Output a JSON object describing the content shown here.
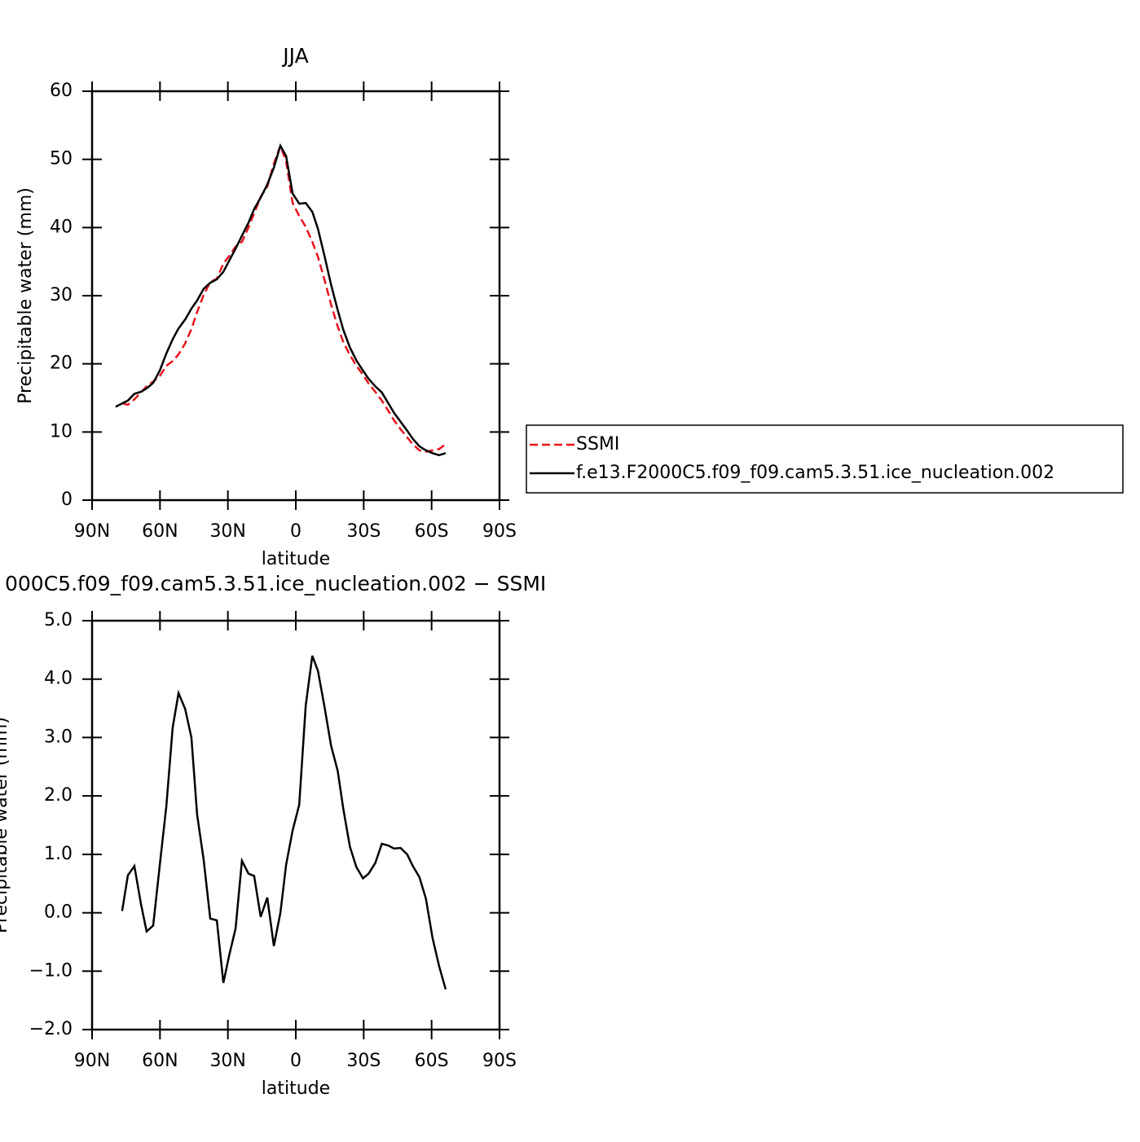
{
  "chart_data": [
    {
      "type": "line",
      "title": "JJA",
      "xlabel": "latitude",
      "ylabel": "Precipitable water (mm)",
      "xlim": [
        90,
        -90
      ],
      "xticks": [
        {
          "value": 90,
          "label": "90N"
        },
        {
          "value": 60,
          "label": "60N"
        },
        {
          "value": 30,
          "label": "30N"
        },
        0,
        {
          "value": -30,
          "label": "30S"
        },
        {
          "value": -60,
          "label": "60S"
        },
        {
          "value": -90,
          "label": "90S"
        }
      ],
      "ylim": [
        0,
        60
      ],
      "yticks": [
        0,
        10,
        20,
        30,
        40,
        50,
        60
      ],
      "legend": "right",
      "x": [
        79.6,
        76.7,
        74.2,
        71.3,
        68.4,
        65.9,
        63,
        60.1,
        57.2,
        54.4,
        51.8,
        48.9,
        46.1,
        43.6,
        40.7,
        37.8,
        34.9,
        32,
        29.5,
        26.6,
        23.8,
        20.9,
        18.4,
        15.5,
        12.6,
        9.7,
        6.8,
        4.3,
        1.4,
        -1.5,
        -4.4,
        -7.3,
        -9.8,
        -12.7,
        -15.6,
        -18.5,
        -21,
        -23.9,
        -26.8,
        -29.7,
        -32.2,
        -35.1,
        -38,
        -40.9,
        -43.4,
        -46.3,
        -49.2,
        -51.7,
        -54.6,
        -57.5,
        -60.4,
        -63.3,
        -66.2
      ],
      "series": [
        {
          "name": "SSMI",
          "color": "#e8141c",
          "dash": "dashed",
          "values": [
            null,
            14.2,
            14.0,
            14.8,
            15.8,
            16.7,
            17.4,
            18.2,
            19.7,
            20.4,
            21.4,
            23.0,
            25.1,
            27.6,
            30.1,
            32.0,
            32.5,
            34.7,
            35.8,
            37.2,
            37.9,
            40.0,
            42.1,
            44.5,
            46.0,
            49.4,
            52.0,
            49.7,
            43.6,
            41.7,
            40.1,
            37.9,
            35.7,
            32.3,
            28.7,
            25.5,
            23.2,
            21.3,
            19.7,
            18.4,
            17.1,
            15.9,
            14.6,
            13.1,
            11.7,
            10.4,
            9.2,
            8.2,
            7.3,
            7.1,
            7.3,
            7.5,
            8.2
          ]
        },
        {
          "name": "f.e13.F2000C5.f09_f09.cam5.3.51.ice_nucleation.002",
          "color": "#000000",
          "dash": "solid",
          "values": [
            13.7,
            14.2,
            14.6,
            15.6,
            15.9,
            16.4,
            17.2,
            19.0,
            21.5,
            23.6,
            25.2,
            26.5,
            28.1,
            29.3,
            31.0,
            31.9,
            32.4,
            33.5,
            35.1,
            36.9,
            38.8,
            40.7,
            42.7,
            44.4,
            46.3,
            48.8,
            52.0,
            50.5,
            45.0,
            43.5,
            43.6,
            42.3,
            39.8,
            35.8,
            31.6,
            27.9,
            25.0,
            22.4,
            20.5,
            19.0,
            17.8,
            16.7,
            15.8,
            14.2,
            12.8,
            11.5,
            10.2,
            9.0,
            7.9,
            7.3,
            6.9,
            6.6,
            6.9
          ]
        }
      ]
    },
    {
      "type": "line",
      "title": "000C5.f09_f09.cam5.3.51.ice_nucleation.002 − SSMI",
      "xlabel": "latitude",
      "ylabel": "Precipitable water (mm)",
      "xlim": [
        90,
        -90
      ],
      "xticks": [
        {
          "value": 90,
          "label": "90N"
        },
        {
          "value": 60,
          "label": "60N"
        },
        {
          "value": 30,
          "label": "30N"
        },
        0,
        {
          "value": -30,
          "label": "30S"
        },
        {
          "value": -60,
          "label": "60S"
        },
        {
          "value": -90,
          "label": "90S"
        }
      ],
      "ylim": [
        -2,
        5
      ],
      "yticks": [
        {
          "value": -2,
          "label": "−2.0"
        },
        {
          "value": -1,
          "label": "−1.0"
        },
        {
          "value": 0,
          "label": "0.0"
        },
        {
          "value": 1,
          "label": "1.0"
        },
        {
          "value": 2,
          "label": "2.0"
        },
        {
          "value": 3,
          "label": "3.0"
        },
        {
          "value": 4,
          "label": "4.0"
        },
        {
          "value": 5,
          "label": "5.0"
        }
      ],
      "x": [
        76.7,
        74.2,
        71.3,
        68.4,
        65.9,
        63,
        60.1,
        57.2,
        54.4,
        51.8,
        48.9,
        46.1,
        43.6,
        40.7,
        37.8,
        34.9,
        32,
        29.5,
        26.6,
        23.8,
        20.9,
        18.4,
        15.5,
        12.6,
        9.7,
        6.8,
        4.3,
        1.4,
        -1.5,
        -4.4,
        -7.3,
        -9.8,
        -12.7,
        -15.6,
        -18.5,
        -21,
        -23.9,
        -26.8,
        -29.7,
        -32.2,
        -35.1,
        -38,
        -40.9,
        -43.4,
        -46.3,
        -49.2,
        -51.7,
        -54.6,
        -57.5,
        -60.4,
        -63.3,
        -66.2
      ],
      "series": [
        {
          "color": "#000000",
          "dash": "solid",
          "values": [
            0.03,
            0.64,
            0.8,
            0.15,
            -0.32,
            -0.22,
            0.82,
            1.82,
            3.17,
            3.76,
            3.49,
            3.0,
            1.68,
            0.91,
            -0.1,
            -0.13,
            -1.2,
            -0.74,
            -0.27,
            0.89,
            0.67,
            0.63,
            -0.07,
            0.26,
            -0.57,
            0.0,
            0.82,
            1.41,
            1.85,
            3.55,
            4.4,
            4.14,
            3.52,
            2.86,
            2.43,
            1.78,
            1.13,
            0.78,
            0.59,
            0.67,
            0.85,
            1.18,
            1.15,
            1.1,
            1.11,
            1.0,
            0.8,
            0.61,
            0.24,
            -0.43,
            -0.91,
            -1.31
          ]
        }
      ]
    }
  ]
}
